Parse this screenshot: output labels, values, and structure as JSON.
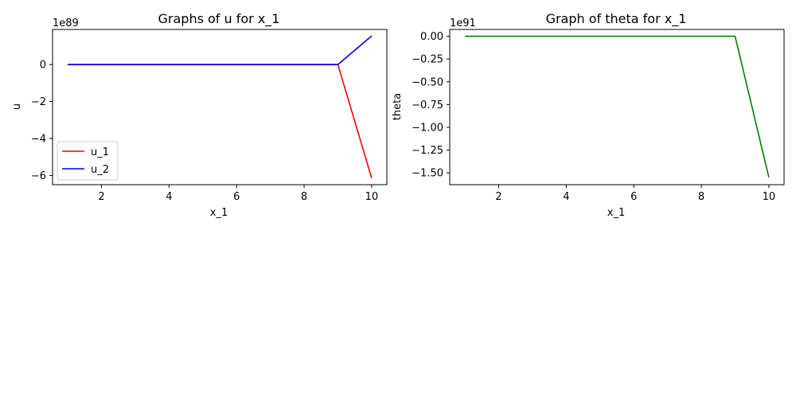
{
  "chart_data": [
    {
      "type": "line",
      "title": "Graphs of u for x_1",
      "xlabel": "x_1",
      "ylabel": "u",
      "y_offset_label": "1e89",
      "xlim": [
        0.55,
        10.45
      ],
      "ylim": [
        -6.5,
        1.9
      ],
      "x_ticks": [
        2,
        4,
        6,
        8,
        10
      ],
      "x_tick_labels": [
        "2",
        "4",
        "6",
        "8",
        "10"
      ],
      "y_ticks": [
        -6,
        -4,
        -2,
        0
      ],
      "y_tick_labels": [
        "−6",
        "−4",
        "−2",
        "0"
      ],
      "grid": false,
      "legend_position": "lower-left",
      "x": [
        1,
        2,
        3,
        4,
        5,
        6,
        7,
        8,
        9,
        10
      ],
      "series": [
        {
          "name": "u_1",
          "color": "#ff0000",
          "values": [
            0,
            0,
            0,
            0,
            0,
            0,
            0,
            0,
            0,
            -6.15
          ]
        },
        {
          "name": "u_2",
          "color": "#0000ff",
          "values": [
            0,
            0,
            0,
            0,
            0,
            0,
            0,
            0,
            0,
            1.55
          ]
        }
      ]
    },
    {
      "type": "line",
      "title": "Graph of theta for x_1",
      "xlabel": "x_1",
      "ylabel": "theta",
      "y_offset_label": "1e91",
      "xlim": [
        0.55,
        10.45
      ],
      "ylim": [
        -1.63,
        0.075
      ],
      "x_ticks": [
        2,
        4,
        6,
        8,
        10
      ],
      "x_tick_labels": [
        "2",
        "4",
        "6",
        "8",
        "10"
      ],
      "y_ticks": [
        0,
        -0.25,
        -0.5,
        -0.75,
        -1.0,
        -1.25,
        -1.5
      ],
      "y_tick_labels": [
        "0.00",
        "−0.25",
        "−0.50",
        "−0.75",
        "−1.00",
        "−1.25",
        "−1.50"
      ],
      "grid": false,
      "x": [
        1,
        2,
        3,
        4,
        5,
        6,
        7,
        8,
        9,
        10
      ],
      "series": [
        {
          "color": "#008000",
          "values": [
            0,
            0,
            0,
            0,
            0,
            0,
            0,
            0,
            0,
            -1.55
          ]
        }
      ]
    }
  ]
}
